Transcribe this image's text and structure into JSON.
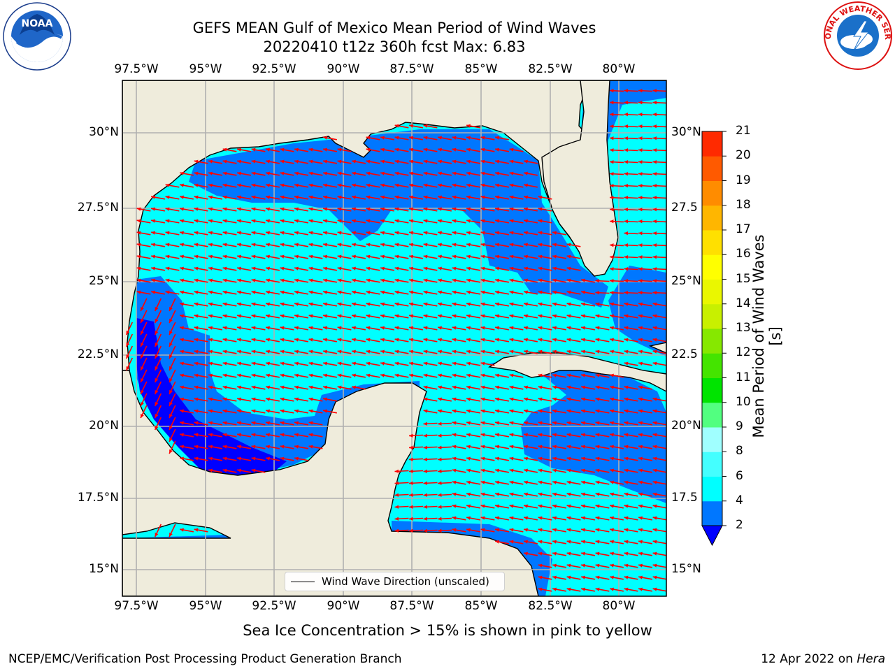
{
  "title": {
    "line1": "GEFS MEAN Gulf of Mexico Mean Period of Wind Waves",
    "line2": "20220410 t12z 360h fcst   Max: 6.83"
  },
  "map": {
    "lon_labels": [
      "97.5°W",
      "95°W",
      "92.5°W",
      "90°W",
      "87.5°W",
      "85°W",
      "82.5°W",
      "80°W"
    ],
    "lat_labels_left": [
      "30°N",
      "27.5°N",
      "25°N",
      "22.5°N",
      "20°N",
      "17.5°N",
      "15°N"
    ],
    "lat_labels_right": [
      "30°N",
      "27.5",
      "25°N",
      "22.5",
      "20°N",
      "17.5",
      "15°N"
    ],
    "lon_range": [
      -98,
      -78.2
    ],
    "lat_range": [
      14,
      31.6
    ],
    "land_color": "#efecdc",
    "arrow_color": "#ff0000",
    "dominant_direction": "westward (easterly wind waves)"
  },
  "legend": {
    "label": "Wind Wave Direction (unscaled)"
  },
  "colorbar": {
    "label": "Mean Period of Wind Waves [s]",
    "ticks": [
      "2",
      "4",
      "6",
      "8",
      "9",
      "10",
      "11",
      "12",
      "13",
      "14",
      "15",
      "16",
      "17",
      "18",
      "19",
      "20",
      "21"
    ],
    "colors": [
      "#0077ff",
      "#00ffff",
      "#44ffff",
      "#a0ffff",
      "#52ff80",
      "#00e400",
      "#44e400",
      "#86e800",
      "#c8f000",
      "#eaf700",
      "#ffff00",
      "#ffe000",
      "#ffb600",
      "#ff8c00",
      "#ff5a00",
      "#ff2a00"
    ],
    "extend_color": "#0000ff"
  },
  "ice_note": "Sea Ice Concentration > 15% is shown in pink to yellow",
  "footer": {
    "left": "NCEP/EMC/Verification Post Processing Product Generation Branch",
    "right_date": "12 Apr 2022 on",
    "right_machine": "Hera"
  },
  "logos": {
    "left": "NOAA",
    "right": "NATIONAL WEATHER SERVICE"
  }
}
